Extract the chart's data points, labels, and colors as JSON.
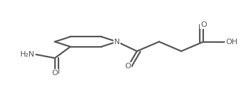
{
  "background_color": "#ffffff",
  "line_color": "#555555",
  "text_color": "#555555",
  "line_width": 1.6,
  "font_size": 8.0,
  "figsize": [
    3.52,
    1.32
  ],
  "dpi": 100,
  "xlim": [
    -0.05,
    1.05
  ],
  "ylim": [
    0.05,
    1.0
  ]
}
